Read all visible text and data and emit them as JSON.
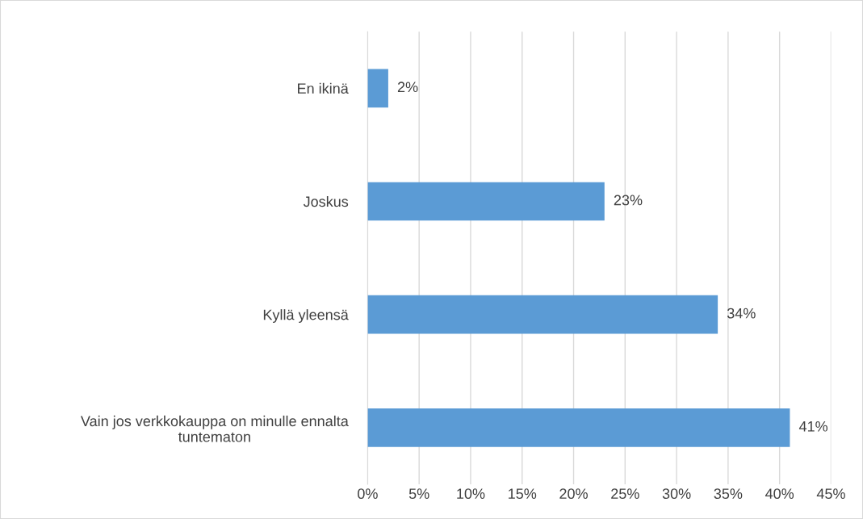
{
  "chart_data": {
    "type": "bar",
    "orientation": "horizontal",
    "categories": [
      "En ikinä",
      "Joskus",
      "Kyllä yleensä",
      "Vain jos verkkokauppa on minulle ennalta\ntuntematon"
    ],
    "values": [
      2,
      23,
      34,
      41
    ],
    "value_labels": [
      "2%",
      "23%",
      "34%",
      "41%"
    ],
    "color": "#5b9bd5",
    "xlim": [
      0,
      45
    ],
    "xticks": [
      {
        "value": 0,
        "label": "0%"
      },
      {
        "value": 5,
        "label": "5%"
      },
      {
        "value": 10,
        "label": "10%"
      },
      {
        "value": 15,
        "label": "15%"
      },
      {
        "value": 20,
        "label": "20%"
      },
      {
        "value": 25,
        "label": "25%"
      },
      {
        "value": 30,
        "label": "30%"
      },
      {
        "value": 35,
        "label": "35%"
      },
      {
        "value": 40,
        "label": "40%"
      },
      {
        "value": 45,
        "label": "45%"
      }
    ],
    "grid": "x",
    "legend": false
  }
}
